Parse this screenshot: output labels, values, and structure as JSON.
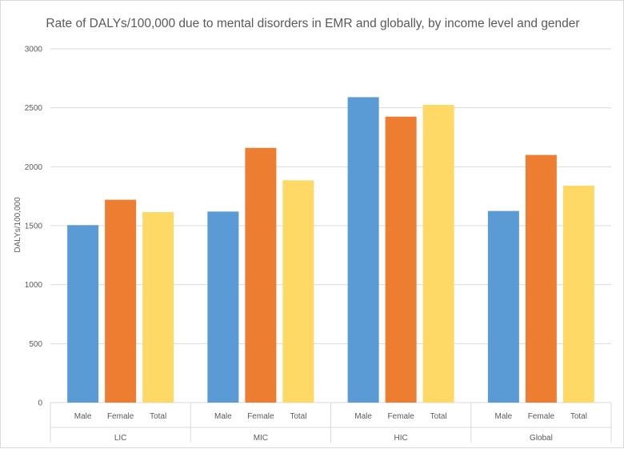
{
  "chart_data": {
    "type": "bar",
    "title": "Rate of DALYs/100,000 due to mental disorders in EMR and globally, by income level and gender",
    "xlabel": "",
    "ylabel": "DALYs/100,000",
    "ylim": [
      0,
      3000
    ],
    "yticks": [
      0,
      500,
      1000,
      1500,
      2000,
      2500,
      3000
    ],
    "groups": [
      "LIC",
      "MIC",
      "HIC",
      "Global"
    ],
    "categories": [
      "Male",
      "Female",
      "Total"
    ],
    "series": [
      {
        "values": [
          1505,
          1720,
          1615
        ],
        "color": "#5B9BD5"
      },
      {
        "values": [
          1620,
          2160,
          1885
        ],
        "color": "#ED7D31"
      },
      {
        "values": [
          2590,
          2425,
          2525
        ],
        "color": "#5B9BD5"
      },
      {
        "values": [
          1625,
          2100,
          1840
        ],
        "color": "#ED7D31"
      }
    ],
    "bar_colors": {
      "Male": "#5B9BD5",
      "Female": "#ED7D31",
      "Total": "#FFD966"
    },
    "legend": "none",
    "grid": true
  }
}
